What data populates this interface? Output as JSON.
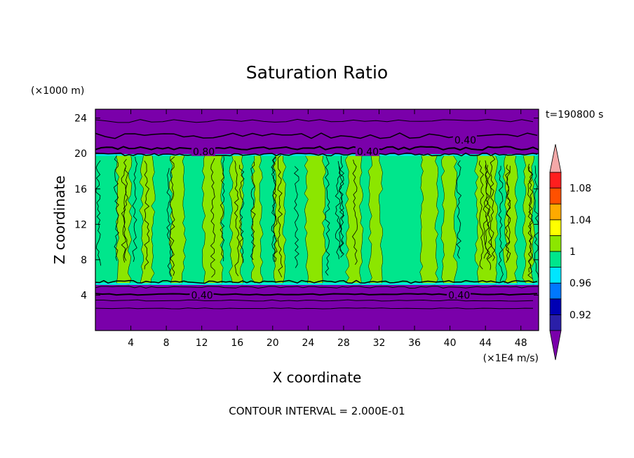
{
  "chart_data": {
    "type": "heatmap",
    "title": "Saturation Ratio",
    "xlabel": "X coordinate",
    "ylabel": "Z coordinate",
    "x_units": "(×1E4 m/s)",
    "y_units": "(×1000 m)",
    "time_label": "t=190800 s",
    "footer": "CONTOUR INTERVAL = 2.000E-01",
    "xlim": [
      0,
      50
    ],
    "ylim": [
      0,
      25
    ],
    "x_ticks": [
      4,
      8,
      12,
      16,
      20,
      24,
      28,
      32,
      36,
      40,
      44,
      48
    ],
    "y_ticks": [
      4,
      8,
      12,
      16,
      20,
      24
    ],
    "contour_labels": [
      "0.40",
      "0.80",
      "0.40",
      "0.40",
      "0.40"
    ],
    "colorbar": {
      "levels": [
        0.9,
        0.92,
        0.94,
        0.96,
        0.98,
        1.0,
        1.02,
        1.04,
        1.06,
        1.08,
        1.1
      ],
      "tick_labels": [
        "0.92",
        "0.96",
        "1",
        "1.04",
        "1.08"
      ],
      "tick_values": [
        0.92,
        0.96,
        1.0,
        1.04,
        1.08
      ],
      "colors": [
        "#2a1fa8",
        "#0000b4",
        "#0078ff",
        "#00e6ff",
        "#00e68c",
        "#8ce600",
        "#ffff00",
        "#ffaa00",
        "#ff5000",
        "#ff1e1e"
      ],
      "under_color": "#7a00aa",
      "over_color": "#f4a8a8"
    },
    "regions": [
      {
        "range": [
          0,
          5.5
        ],
        "value": "below 0.92"
      },
      {
        "range": [
          5.5,
          20
        ],
        "value": "0.98-1.02"
      },
      {
        "range": [
          20,
          25
        ],
        "value": "below 0.92"
      }
    ]
  }
}
